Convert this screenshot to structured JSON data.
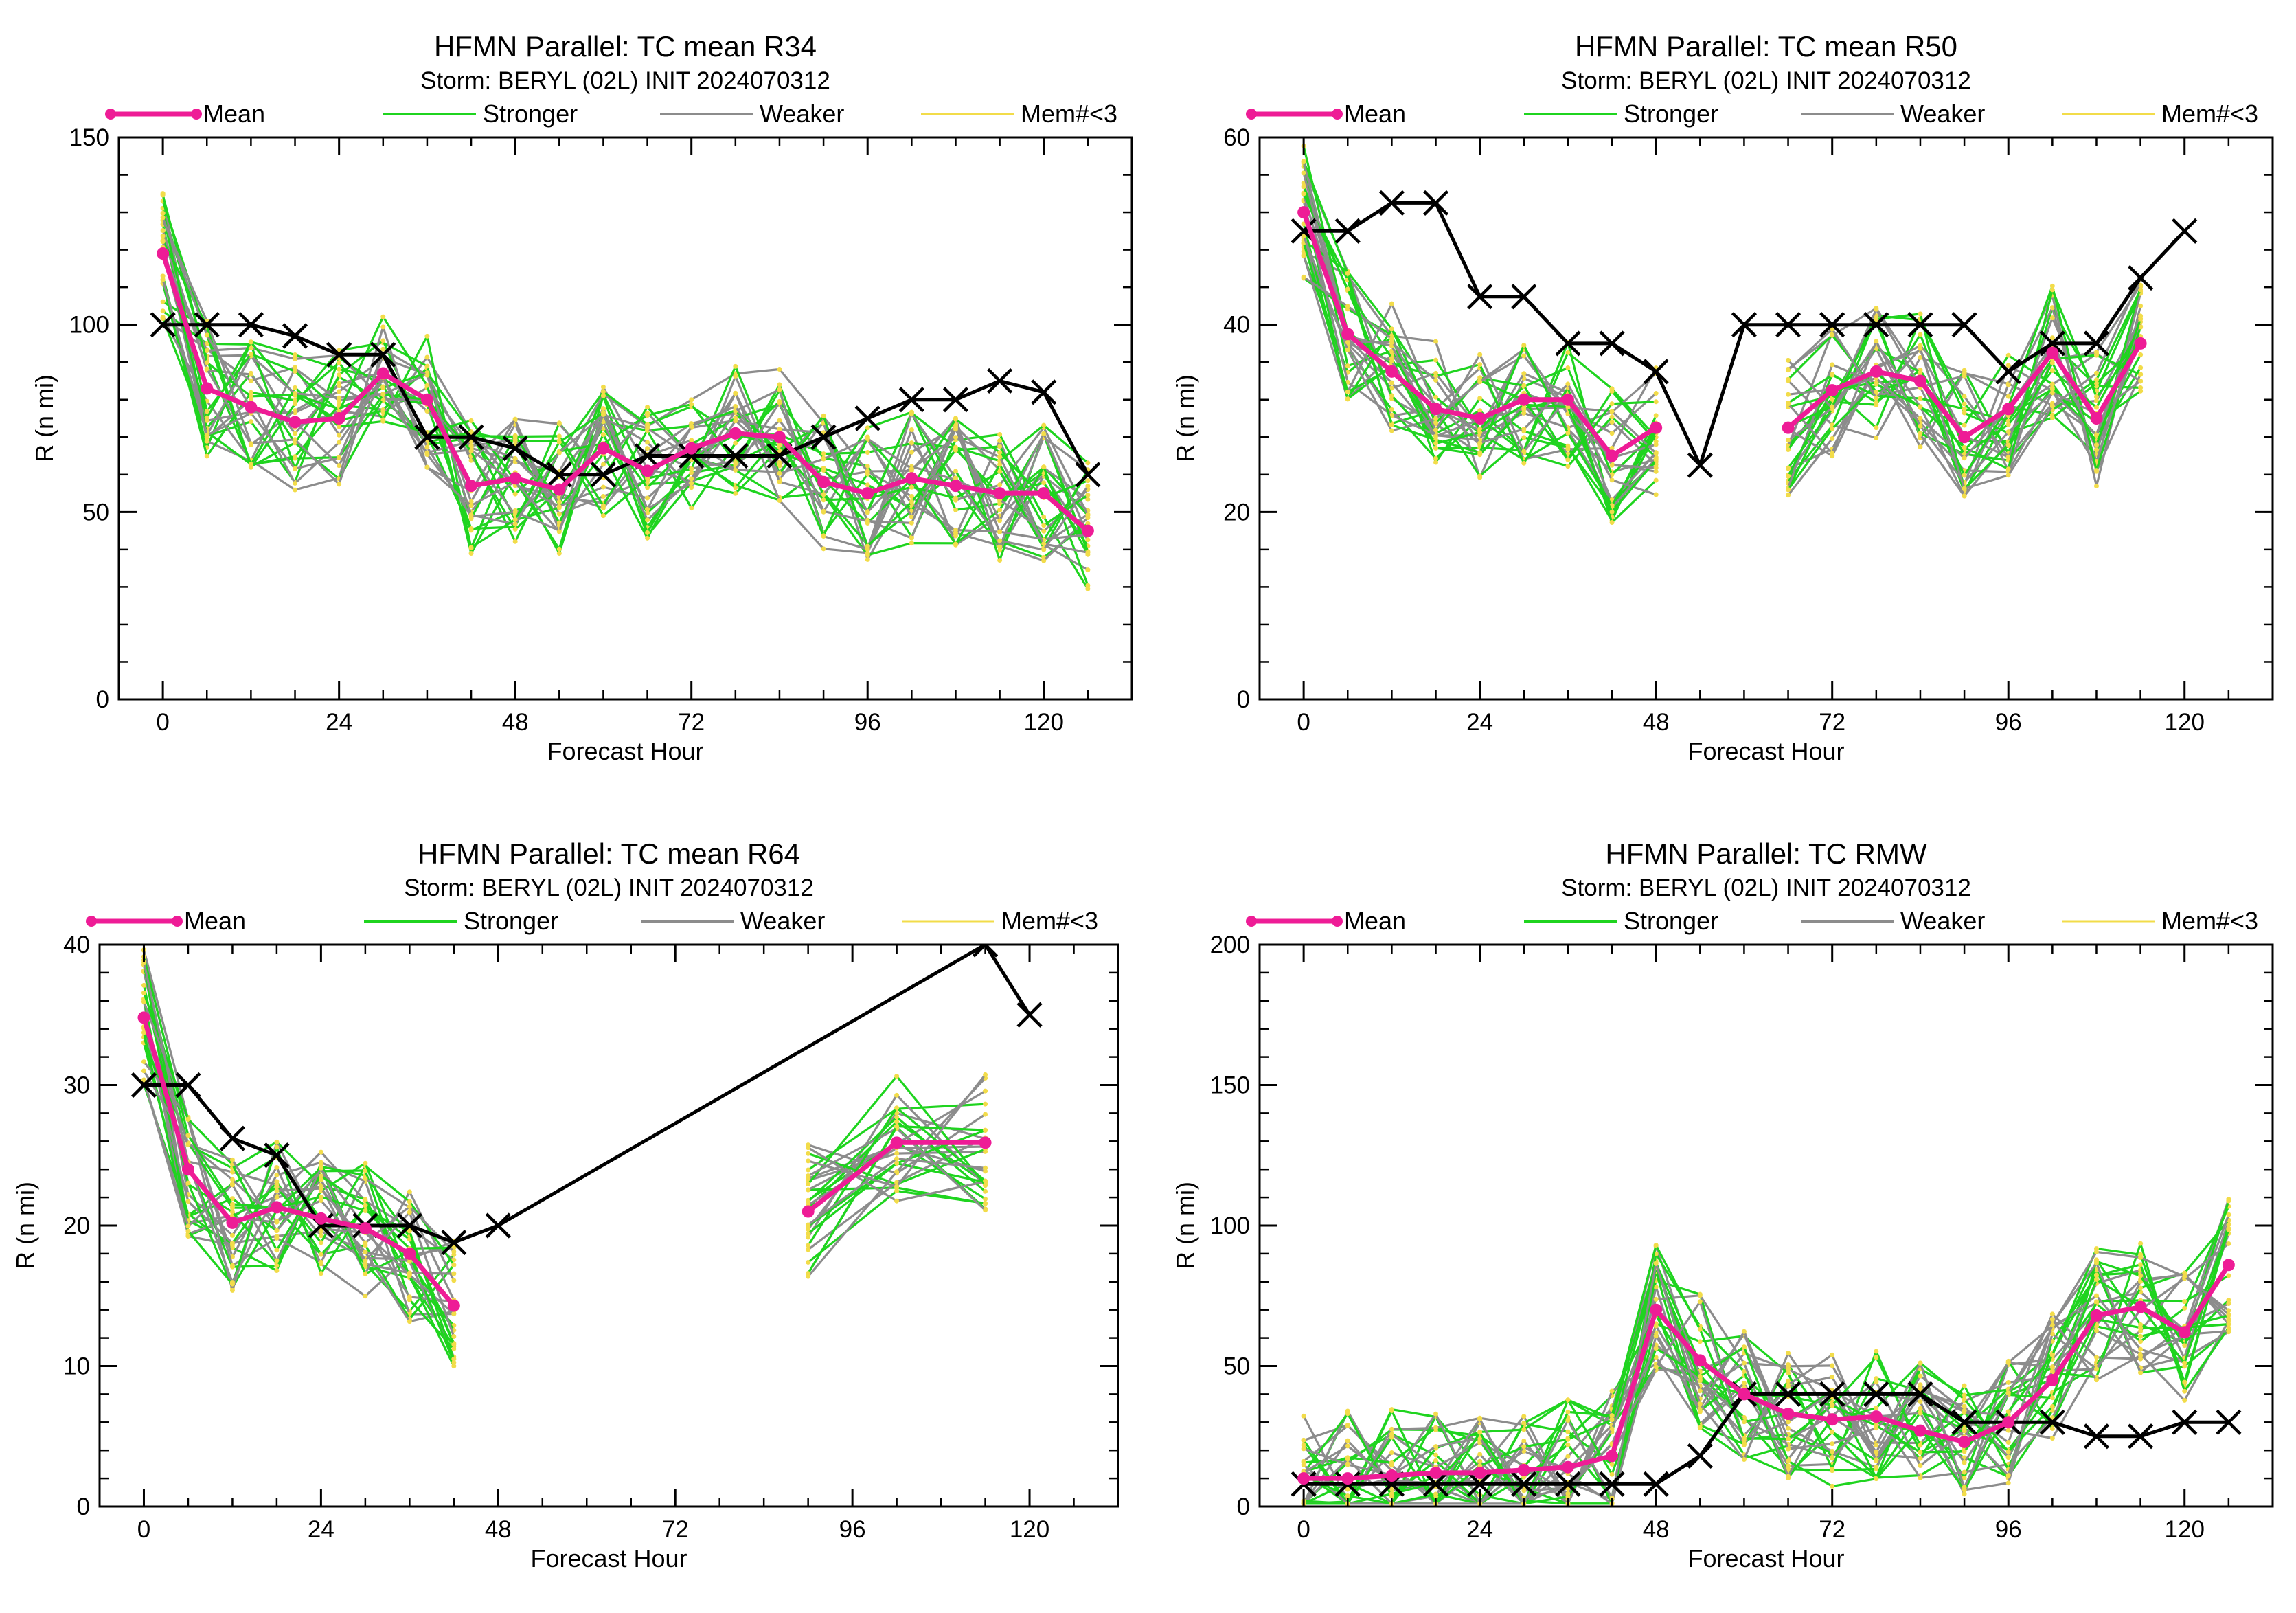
{
  "colors": {
    "mean": "#ee1c96",
    "stronger": "#1fd41f",
    "weaker": "#8c8c8c",
    "few_members": "#f2dc4a",
    "official": "#000000"
  },
  "legend": {
    "mean": "Mean",
    "stronger": "Stronger",
    "weaker": "Weaker",
    "few_members": "Mem#<3"
  },
  "chart_data": [
    {
      "type": "line",
      "title": "HFMN Parallel: TC mean R34",
      "subtitle": "Storm: BERYL (02L) INIT 2024070312",
      "xlabel": "Forecast Hour",
      "ylabel": "R (n mi)",
      "xlim": [
        -6,
        132
      ],
      "ylim": [
        0,
        150
      ],
      "xticks": [
        0,
        24,
        48,
        72,
        96,
        120
      ],
      "yticks": [
        0,
        50,
        100,
        150
      ],
      "series": [
        {
          "name": "Mean",
          "x": [
            0,
            6,
            12,
            18,
            24,
            30,
            36,
            42,
            48,
            54,
            60,
            66,
            72,
            78,
            84,
            90,
            96,
            102,
            108,
            114,
            120,
            126
          ],
          "y": [
            119,
            83,
            78,
            74,
            75,
            87,
            80,
            57,
            59,
            56,
            67,
            61,
            67,
            71,
            70,
            58,
            55,
            59,
            57,
            55,
            55,
            45
          ]
        },
        {
          "x": [
            0,
            6,
            12,
            18,
            24,
            30,
            36,
            42,
            48,
            54,
            60,
            66,
            72,
            78,
            84,
            90,
            96,
            102,
            108,
            114,
            120,
            126
          ],
          "y": [
            100,
            100,
            100,
            97,
            92,
            92,
            70,
            70,
            67,
            60,
            60,
            65,
            65,
            65,
            65,
            70,
            75,
            80,
            80,
            85,
            82,
            60
          ]
        }
      ]
    },
    {
      "type": "line",
      "title": "HFMN Parallel: TC mean R50",
      "subtitle": "Storm: BERYL (02L) INIT 2024070312",
      "xlabel": "Forecast Hour",
      "ylabel": "R (n mi)",
      "xlim": [
        -6,
        132
      ],
      "ylim": [
        0,
        60
      ],
      "xticks": [
        0,
        24,
        48,
        72,
        96,
        120
      ],
      "yticks": [
        0,
        20,
        40,
        60
      ],
      "series": [
        {
          "name": "Mean",
          "x": [
            0,
            6,
            12,
            18,
            24,
            30,
            36,
            42,
            48
          ],
          "y": [
            52,
            39,
            35,
            31,
            30,
            32,
            32,
            26,
            29
          ]
        },
        {
          "name": "Mean",
          "x": [
            66,
            72,
            78,
            84,
            90,
            96,
            102,
            108,
            114
          ],
          "y": [
            29,
            33,
            35,
            34,
            28,
            31,
            37,
            30,
            38
          ]
        },
        {
          "x": [
            0,
            6,
            12,
            18,
            24,
            30,
            36,
            42,
            48,
            54,
            60,
            66,
            72,
            78,
            84,
            90,
            96,
            102,
            108,
            114,
            120
          ],
          "y": [
            50,
            50,
            53,
            53,
            43,
            43,
            38,
            38,
            35,
            25,
            40,
            40,
            40,
            40,
            40,
            40,
            35,
            38,
            38,
            45,
            50
          ]
        }
      ]
    },
    {
      "type": "line",
      "title": "HFMN Parallel: TC mean R64",
      "subtitle": "Storm: BERYL (02L) INIT 2024070312",
      "xlabel": "Forecast Hour",
      "ylabel": "R (n mi)",
      "xlim": [
        -6,
        132
      ],
      "ylim": [
        0,
        40
      ],
      "xticks": [
        0,
        24,
        48,
        72,
        96,
        120
      ],
      "yticks": [
        0,
        10,
        20,
        30,
        40
      ],
      "series": [
        {
          "name": "Mean",
          "x": [
            0,
            6,
            12,
            18,
            24,
            30,
            36,
            42
          ],
          "y": [
            34.8,
            24,
            20.2,
            21.3,
            20.5,
            19.8,
            18,
            14.3
          ]
        },
        {
          "name": "Mean",
          "x": [
            90,
            102,
            114
          ],
          "y": [
            21,
            25.9,
            25.9
          ]
        },
        {
          "x": [
            0,
            6,
            12,
            18,
            24,
            30,
            36,
            42,
            48,
            114,
            120
          ],
          "y": [
            30,
            30,
            26.2,
            25,
            20,
            20,
            20,
            18.8,
            20,
            40,
            35
          ]
        }
      ]
    },
    {
      "type": "line",
      "title": "HFMN Parallel: TC RMW",
      "subtitle": "Storm: BERYL (02L) INIT 2024070312",
      "xlabel": "Forecast Hour",
      "ylabel": "R (n mi)",
      "xlim": [
        -6,
        132
      ],
      "ylim": [
        0,
        200
      ],
      "xticks": [
        0,
        24,
        48,
        72,
        96,
        120
      ],
      "yticks": [
        0,
        50,
        100,
        150,
        200
      ],
      "series": [
        {
          "name": "Mean",
          "x": [
            0,
            6,
            12,
            18,
            24,
            30,
            36,
            42,
            48,
            54,
            60,
            66,
            72,
            78,
            84,
            90,
            96,
            102,
            108,
            114,
            120,
            126
          ],
          "y": [
            10,
            10,
            11,
            12,
            12,
            13,
            14,
            18,
            70,
            52,
            40,
            33,
            31,
            32,
            27,
            23,
            30,
            45,
            68,
            71,
            62,
            86
          ]
        },
        {
          "x": [
            0,
            6,
            12,
            18,
            24,
            30,
            36,
            42,
            48,
            54,
            60,
            66,
            72,
            78,
            84,
            90,
            96,
            102,
            108,
            114,
            120,
            126
          ],
          "y": [
            8,
            8,
            8,
            8,
            8,
            8,
            8,
            8,
            8,
            18,
            40,
            40,
            40,
            40,
            40,
            30,
            30,
            30,
            25,
            25,
            30,
            30
          ]
        }
      ]
    }
  ]
}
